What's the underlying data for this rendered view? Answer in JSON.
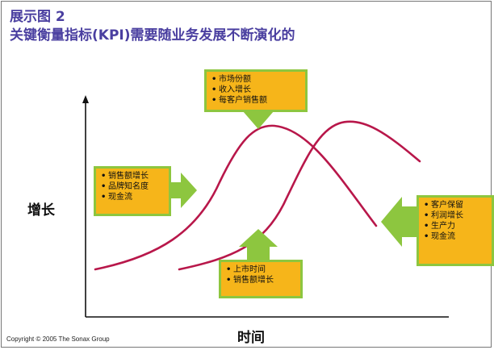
{
  "header": {
    "title_line1": "展示图 2",
    "title_line2": "关键衡量指标(KPI)需要随业务发展不断演化的"
  },
  "axes": {
    "y_label": "增长",
    "x_label": "时间"
  },
  "callouts": {
    "top": {
      "items": [
        "市场份额",
        "收入增长",
        "每客户销售额"
      ]
    },
    "left": {
      "items": [
        "销售额增长",
        "品牌知名度",
        "现金流"
      ]
    },
    "bottom": {
      "items": [
        "上市时间",
        "销售额增长"
      ]
    },
    "right": {
      "items": [
        "客户保留",
        "利润增长",
        "生产力",
        "现金流"
      ]
    }
  },
  "footer": {
    "copyright": "Copyright © 2005 The Sonax Group"
  },
  "colors": {
    "title": "#4a3fa0",
    "curve": "#b8174a",
    "box_fill": "#f6b51a",
    "box_border": "#8dc63f",
    "arrow": "#8dc63f"
  }
}
